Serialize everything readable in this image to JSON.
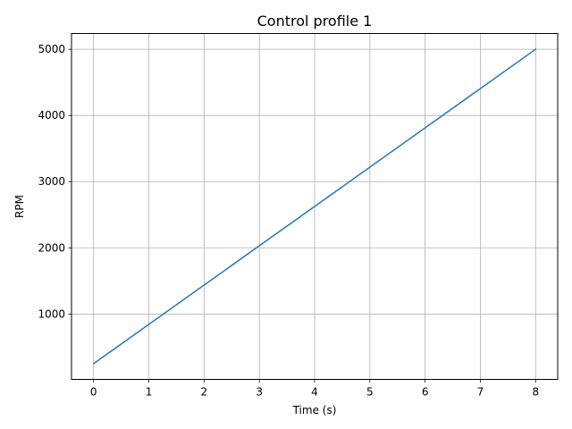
{
  "chart_data": {
    "type": "line",
    "title": "Control profile 1",
    "xlabel": "Time (s)",
    "ylabel": "RPM",
    "xlim": [
      -0.4,
      8.4
    ],
    "ylim": [
      12,
      5238
    ],
    "x_ticks": [
      0,
      1,
      2,
      3,
      4,
      5,
      6,
      7,
      8
    ],
    "y_ticks": [
      1000,
      2000,
      3000,
      4000,
      5000
    ],
    "grid": true,
    "series": [
      {
        "color": "#1f77b4",
        "x": [
          0,
          8
        ],
        "y": [
          250,
          5000
        ]
      }
    ]
  }
}
